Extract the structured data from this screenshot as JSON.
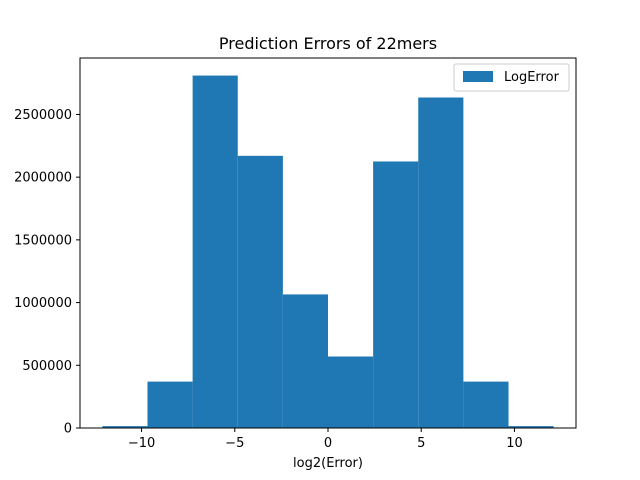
{
  "chart_data": {
    "type": "bar",
    "title": "Prediction Errors of 22mers",
    "xlabel": "log2(Error)",
    "ylabel": "",
    "bins": [
      {
        "x0": -12.1,
        "x1": -9.68,
        "value": 15000
      },
      {
        "x0": -9.68,
        "x1": -7.26,
        "value": 370000
      },
      {
        "x0": -7.26,
        "x1": -4.84,
        "value": 2810000
      },
      {
        "x0": -4.84,
        "x1": -2.42,
        "value": 2170000
      },
      {
        "x0": -2.42,
        "x1": 0.0,
        "value": 1065000
      },
      {
        "x0": 0.0,
        "x1": 2.42,
        "value": 570000
      },
      {
        "x0": 2.42,
        "x1": 4.84,
        "value": 2125000
      },
      {
        "x0": 4.84,
        "x1": 7.26,
        "value": 2635000
      },
      {
        "x0": 7.26,
        "x1": 9.68,
        "value": 370000
      },
      {
        "x0": 9.68,
        "x1": 12.1,
        "value": 15000
      }
    ],
    "xlim": [
      -13.3,
      13.3
    ],
    "ylim": [
      0,
      2950000
    ],
    "xticks": [
      -10,
      -5,
      0,
      5,
      10
    ],
    "xtick_labels": [
      "−10",
      "−5",
      "0",
      "5",
      "10"
    ],
    "yticks": [
      0,
      500000,
      1000000,
      1500000,
      2000000,
      2500000
    ],
    "ytick_labels": [
      "0",
      "500000",
      "1000000",
      "1500000",
      "2000000",
      "2500000"
    ],
    "legend": {
      "entries": [
        "LogError"
      ],
      "placement": "top-right"
    },
    "colors": {
      "bar": "#1f77b4"
    },
    "grid": false
  }
}
